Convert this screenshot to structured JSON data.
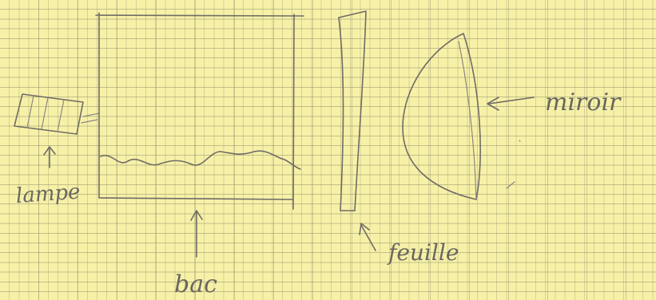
{
  "labels": {
    "lampe": "lampe",
    "bac": "bac",
    "feuille": "feuille",
    "miroir": "miroir"
  },
  "colors": {
    "paper": "#f7f1a8",
    "grid_line": "#96966e",
    "pencil": "#6f6c66"
  }
}
